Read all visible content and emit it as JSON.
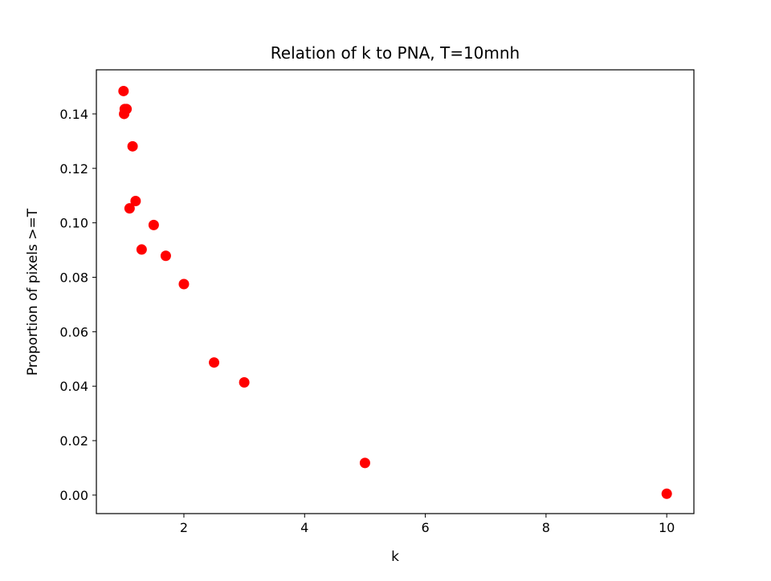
{
  "chart_data": {
    "type": "scatter",
    "title": "Relation of k to PNA, T=10mnh",
    "xlabel": "k",
    "ylabel": "Proportion of pixels >=T",
    "xlim": [
      0.55,
      10.45
    ],
    "ylim": [
      -0.0068,
      0.1562
    ],
    "xticks": [
      2,
      4,
      6,
      8,
      10
    ],
    "xtick_labels": [
      "2",
      "4",
      "6",
      "8",
      "10"
    ],
    "yticks": [
      0.0,
      0.02,
      0.04,
      0.06,
      0.08,
      0.1,
      0.12,
      0.14
    ],
    "ytick_labels": [
      "0.00",
      "0.02",
      "0.04",
      "0.06",
      "0.08",
      "0.10",
      "0.12",
      "0.14"
    ],
    "grid": false,
    "marker_color": "#ff0000",
    "points": [
      {
        "x": 1.0,
        "y": 0.1484
      },
      {
        "x": 1.01,
        "y": 0.14
      },
      {
        "x": 1.02,
        "y": 0.1418
      },
      {
        "x": 1.05,
        "y": 0.1418
      },
      {
        "x": 1.1,
        "y": 0.1053
      },
      {
        "x": 1.15,
        "y": 0.1281
      },
      {
        "x": 1.2,
        "y": 0.108
      },
      {
        "x": 1.3,
        "y": 0.0902
      },
      {
        "x": 1.5,
        "y": 0.0992
      },
      {
        "x": 1.7,
        "y": 0.0879
      },
      {
        "x": 2.0,
        "y": 0.0775
      },
      {
        "x": 2.5,
        "y": 0.0487
      },
      {
        "x": 3.0,
        "y": 0.0414
      },
      {
        "x": 5.0,
        "y": 0.0118
      },
      {
        "x": 10.0,
        "y": 0.0005
      }
    ]
  }
}
